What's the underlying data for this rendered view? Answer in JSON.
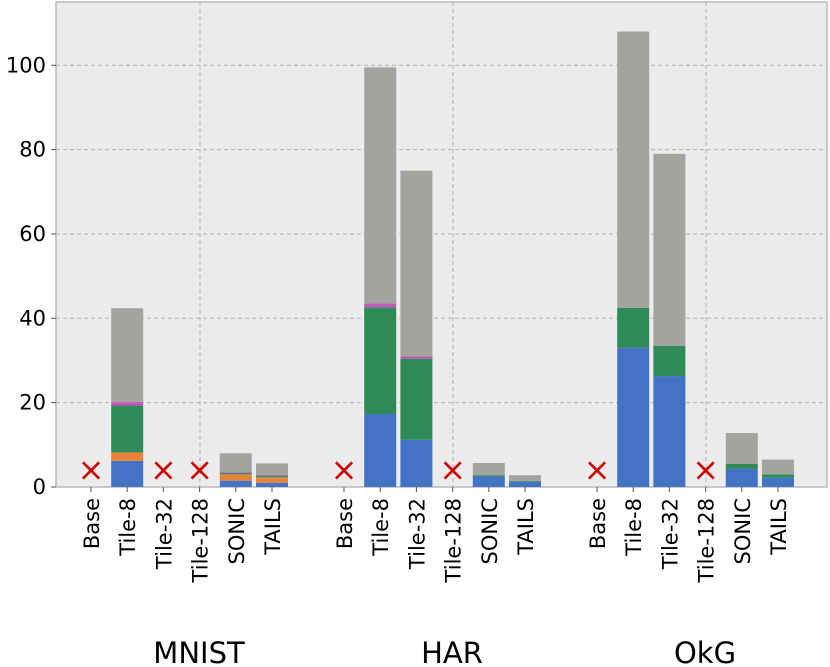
{
  "chart_data": {
    "type": "bar",
    "stacked": true,
    "title": "",
    "xlabel": "",
    "ylabel": "",
    "ylim": [
      0,
      115
    ],
    "yticks": [
      0,
      20,
      40,
      60,
      80,
      100
    ],
    "grid": true,
    "groups": [
      {
        "name": "MNIST",
        "bars": [
          {
            "label": "Base",
            "failed": true,
            "segments": []
          },
          {
            "label": "Tile-8",
            "failed": false,
            "segments": [
              6.2,
              2.0,
              11.0,
              0.5,
              0.5,
              22.2
            ]
          },
          {
            "label": "Tile-32",
            "failed": true,
            "segments": []
          },
          {
            "label": "Tile-128",
            "failed": true,
            "segments": []
          },
          {
            "label": "SONIC",
            "failed": false,
            "segments": [
              1.5,
              1.5,
              0.3,
              0.2,
              0,
              4.5
            ]
          },
          {
            "label": "TAILS",
            "failed": false,
            "segments": [
              1.0,
              1.3,
              0.3,
              0.2,
              0,
              2.8
            ]
          }
        ]
      },
      {
        "name": "HAR",
        "bars": [
          {
            "label": "Base",
            "failed": true,
            "segments": []
          },
          {
            "label": "Tile-8",
            "failed": false,
            "segments": [
              17.3,
              0,
              25.2,
              0.5,
              0.5,
              56.0
            ]
          },
          {
            "label": "Tile-32",
            "failed": false,
            "segments": [
              11.2,
              0,
              19.2,
              0.3,
              0.3,
              44.0
            ]
          },
          {
            "label": "Tile-128",
            "failed": true,
            "segments": []
          },
          {
            "label": "SONIC",
            "failed": false,
            "segments": [
              2.5,
              0,
              0.3,
              0,
              0,
              2.9
            ]
          },
          {
            "label": "TAILS",
            "failed": false,
            "segments": [
              1.2,
              0,
              0.2,
              0,
              0,
              1.4
            ]
          }
        ]
      },
      {
        "name": "OkG",
        "bars": [
          {
            "label": "Base",
            "failed": true,
            "segments": []
          },
          {
            "label": "Tile-8",
            "failed": false,
            "segments": [
              33.0,
              0,
              9.5,
              0,
              0,
              65.5
            ]
          },
          {
            "label": "Tile-32",
            "failed": false,
            "segments": [
              26.3,
              0,
              7.2,
              0,
              0,
              45.5
            ]
          },
          {
            "label": "Tile-128",
            "failed": true,
            "segments": []
          },
          {
            "label": "SONIC",
            "failed": false,
            "segments": [
              4.3,
              0,
              1.2,
              0,
              0,
              7.3
            ]
          },
          {
            "label": "TAILS",
            "failed": false,
            "segments": [
              2.2,
              0,
              0.8,
              0,
              0,
              3.5
            ]
          }
        ]
      }
    ],
    "segment_colors": [
      "#4472c4",
      "#e8833a",
      "#2e8b57",
      "#a05ab4",
      "#c65ab0",
      "#a3a4a0"
    ],
    "failed_marker": {
      "symbol": "×",
      "color": "#cc0000"
    }
  }
}
